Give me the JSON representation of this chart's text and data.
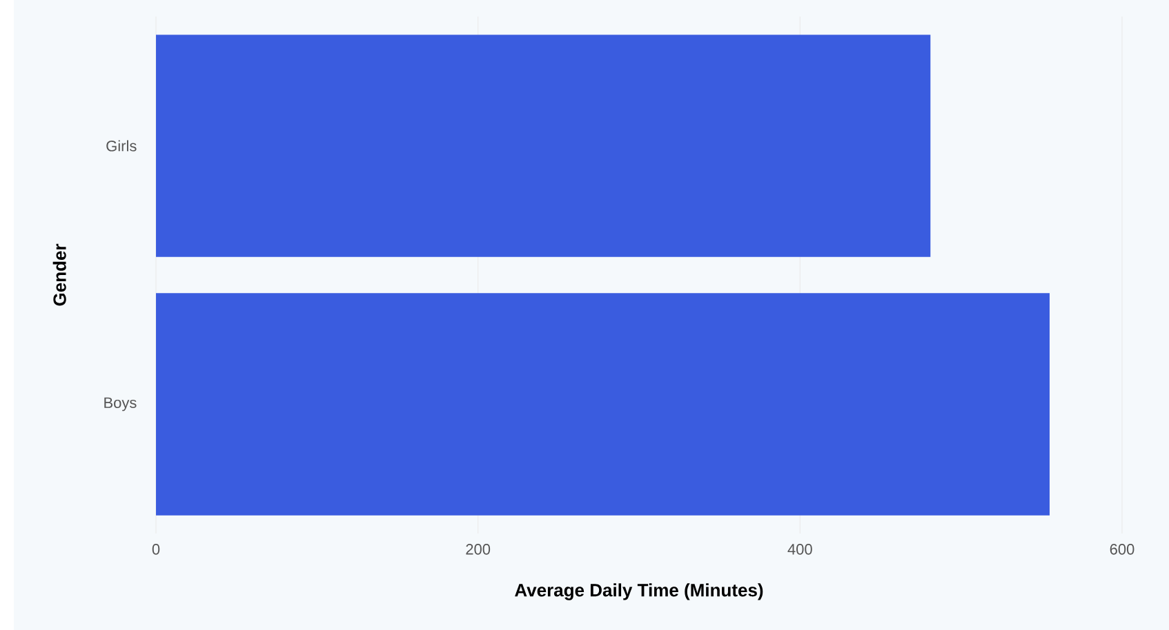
{
  "chart_data": {
    "type": "bar",
    "orientation": "horizontal",
    "categories": [
      "Girls",
      "Boys"
    ],
    "values": [
      481,
      555
    ],
    "color": "#3a5cdf",
    "xlabel": "Average Daily Time (Minutes)",
    "ylabel": "Gender",
    "xlim": [
      0,
      600
    ],
    "xticks": [
      0,
      200,
      400,
      600
    ],
    "grid": "x"
  }
}
